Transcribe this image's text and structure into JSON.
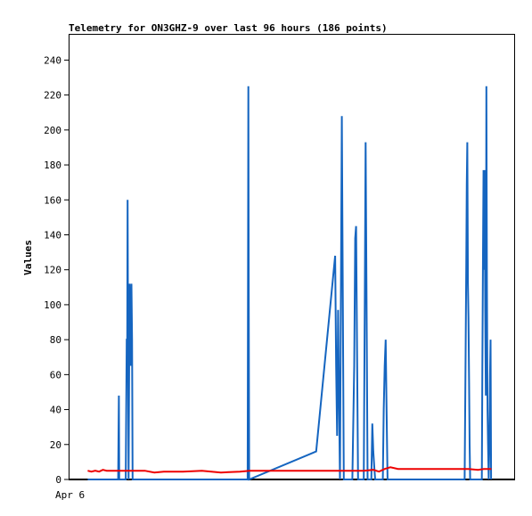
{
  "chart_data": {
    "type": "line",
    "title": "Telemetry for ON3GHZ-9 over last 96 hours (186 points)",
    "ylabel": "Values",
    "xlabel": "",
    "x_tick_labels": [
      "Apr 6"
    ],
    "ylim": [
      0,
      255
    ],
    "y_ticks": [
      0,
      20,
      40,
      60,
      80,
      100,
      120,
      140,
      160,
      180,
      200,
      220,
      240
    ],
    "grid": false,
    "legend": "none",
    "series": [
      {
        "color": "#1565c0",
        "points": [
          [
            0,
            0
          ],
          [
            1.6,
            0
          ],
          [
            1.62,
            25
          ],
          [
            1.64,
            48
          ],
          [
            1.66,
            0
          ],
          [
            1.68,
            0
          ],
          [
            2.0,
            0
          ],
          [
            2.05,
            80
          ],
          [
            2.08,
            80
          ],
          [
            2.1,
            160
          ],
          [
            2.12,
            80
          ],
          [
            2.15,
            0
          ],
          [
            2.2,
            112
          ],
          [
            2.25,
            65
          ],
          [
            2.3,
            112
          ],
          [
            2.33,
            80
          ],
          [
            2.36,
            0
          ],
          [
            8.4,
            0
          ],
          [
            8.42,
            112
          ],
          [
            8.44,
            225
          ],
          [
            8.46,
            112
          ],
          [
            8.48,
            0
          ],
          [
            12.0,
            16
          ],
          [
            13.0,
            128
          ],
          [
            13.05,
            65
          ],
          [
            13.1,
            25
          ],
          [
            13.15,
            97
          ],
          [
            13.2,
            48
          ],
          [
            13.25,
            0
          ],
          [
            13.35,
            208
          ],
          [
            13.4,
            104
          ],
          [
            13.45,
            0
          ],
          [
            13.9,
            0
          ],
          [
            14.0,
            65
          ],
          [
            14.05,
            138
          ],
          [
            14.1,
            145
          ],
          [
            14.15,
            72
          ],
          [
            14.2,
            0
          ],
          [
            14.5,
            0
          ],
          [
            14.55,
            97
          ],
          [
            14.6,
            193
          ],
          [
            14.65,
            97
          ],
          [
            14.7,
            0
          ],
          [
            14.9,
            0
          ],
          [
            14.95,
            32
          ],
          [
            15.0,
            16
          ],
          [
            15.05,
            8
          ],
          [
            15.1,
            0
          ],
          [
            15.5,
            0
          ],
          [
            15.55,
            40
          ],
          [
            15.6,
            65
          ],
          [
            15.65,
            80
          ],
          [
            15.7,
            40
          ],
          [
            15.75,
            0
          ],
          [
            19.8,
            0
          ],
          [
            19.85,
            72
          ],
          [
            19.88,
            120
          ],
          [
            19.91,
            169
          ],
          [
            19.94,
            193
          ],
          [
            19.97,
            112
          ],
          [
            20.0,
            93
          ],
          [
            20.03,
            56
          ],
          [
            20.06,
            20
          ],
          [
            20.09,
            0
          ],
          [
            20.7,
            0
          ],
          [
            20.73,
            65
          ],
          [
            20.76,
            128
          ],
          [
            20.79,
            177
          ],
          [
            20.82,
            120
          ],
          [
            20.85,
            177
          ],
          [
            20.88,
            97
          ],
          [
            20.91,
            48
          ],
          [
            20.94,
            225
          ],
          [
            20.97,
            112
          ],
          [
            21.0,
            40
          ],
          [
            21.03,
            20
          ],
          [
            21.06,
            0
          ],
          [
            21.1,
            20
          ],
          [
            21.13,
            60
          ],
          [
            21.16,
            80
          ],
          [
            21.19,
            0
          ]
        ]
      },
      {
        "color": "#ee0000",
        "points": [
          [
            0,
            5
          ],
          [
            0.2,
            4.5
          ],
          [
            0.4,
            5
          ],
          [
            0.6,
            4.5
          ],
          [
            0.8,
            5.5
          ],
          [
            1.0,
            5
          ],
          [
            1.3,
            5
          ],
          [
            2.0,
            5
          ],
          [
            3.0,
            5
          ],
          [
            3.5,
            4
          ],
          [
            4.0,
            4.5
          ],
          [
            5.0,
            4.5
          ],
          [
            6.0,
            5
          ],
          [
            7.0,
            4
          ],
          [
            8.0,
            4.5
          ],
          [
            8.5,
            5
          ],
          [
            10,
            5
          ],
          [
            12,
            5
          ],
          [
            14,
            5
          ],
          [
            14.5,
            5
          ],
          [
            15,
            5.5
          ],
          [
            15.3,
            4.5
          ],
          [
            15.6,
            6
          ],
          [
            15.9,
            7
          ],
          [
            16.3,
            6
          ],
          [
            17,
            6
          ],
          [
            18,
            6
          ],
          [
            19,
            6
          ],
          [
            20,
            6
          ],
          [
            20.5,
            5.5
          ],
          [
            20.8,
            6
          ],
          [
            21.2,
            6
          ]
        ]
      }
    ]
  }
}
